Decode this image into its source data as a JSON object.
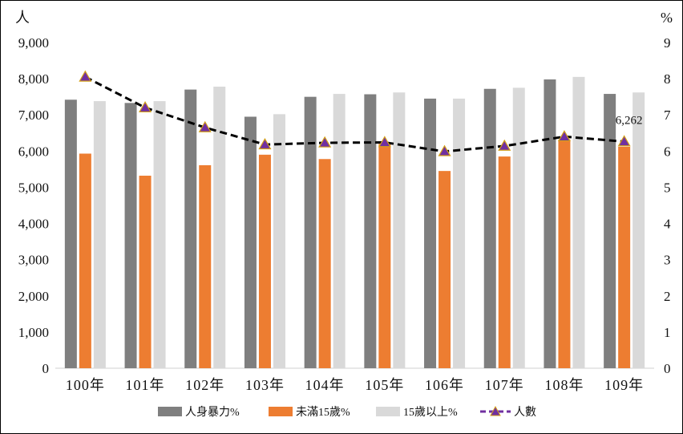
{
  "chart_data": {
    "type": "bar",
    "left_axis_unit": "人",
    "right_axis_unit": "%",
    "categories": [
      "100年",
      "101年",
      "102年",
      "103年",
      "104年",
      "105年",
      "106年",
      "107年",
      "108年",
      "109年"
    ],
    "y_left": {
      "range": [
        0,
        9000
      ],
      "ticks": [
        "0",
        "1,000",
        "2,000",
        "3,000",
        "4,000",
        "5,000",
        "6,000",
        "7,000",
        "8,000",
        "9,000"
      ]
    },
    "y_right": {
      "range": [
        0,
        9
      ],
      "ticks": [
        "0",
        "1",
        "2",
        "3",
        "4",
        "5",
        "6",
        "7",
        "8",
        "9"
      ]
    },
    "series": [
      {
        "name": "人身暴力%",
        "kind": "bar",
        "axis": "right",
        "color": "#7f7f7f",
        "values": [
          7.42,
          7.33,
          7.7,
          6.95,
          7.5,
          7.57,
          7.45,
          7.72,
          7.98,
          7.58
        ]
      },
      {
        "name": "未滿15歲%",
        "kind": "bar",
        "axis": "right",
        "color": "#ed7d31",
        "values": [
          5.93,
          5.32,
          5.61,
          5.9,
          5.78,
          6.2,
          5.45,
          5.85,
          6.32,
          6.12
        ]
      },
      {
        "name": "15歲以上%",
        "kind": "bar",
        "axis": "right",
        "color": "#d9d9d9",
        "values": [
          7.38,
          7.38,
          7.78,
          7.02,
          7.58,
          7.62,
          7.45,
          7.75,
          8.05,
          7.62
        ]
      },
      {
        "name": "人數",
        "kind": "line",
        "axis": "left",
        "color": "#000000",
        "marker_color": "#7030a0",
        "values": [
          8050,
          7200,
          6650,
          6180,
          6230,
          6240,
          5990,
          6140,
          6400,
          6262
        ]
      }
    ],
    "data_labels": [
      {
        "series": "人數",
        "category": "109年",
        "text": "6,262"
      }
    ],
    "legend": {
      "position": "bottom"
    },
    "grid": false
  }
}
